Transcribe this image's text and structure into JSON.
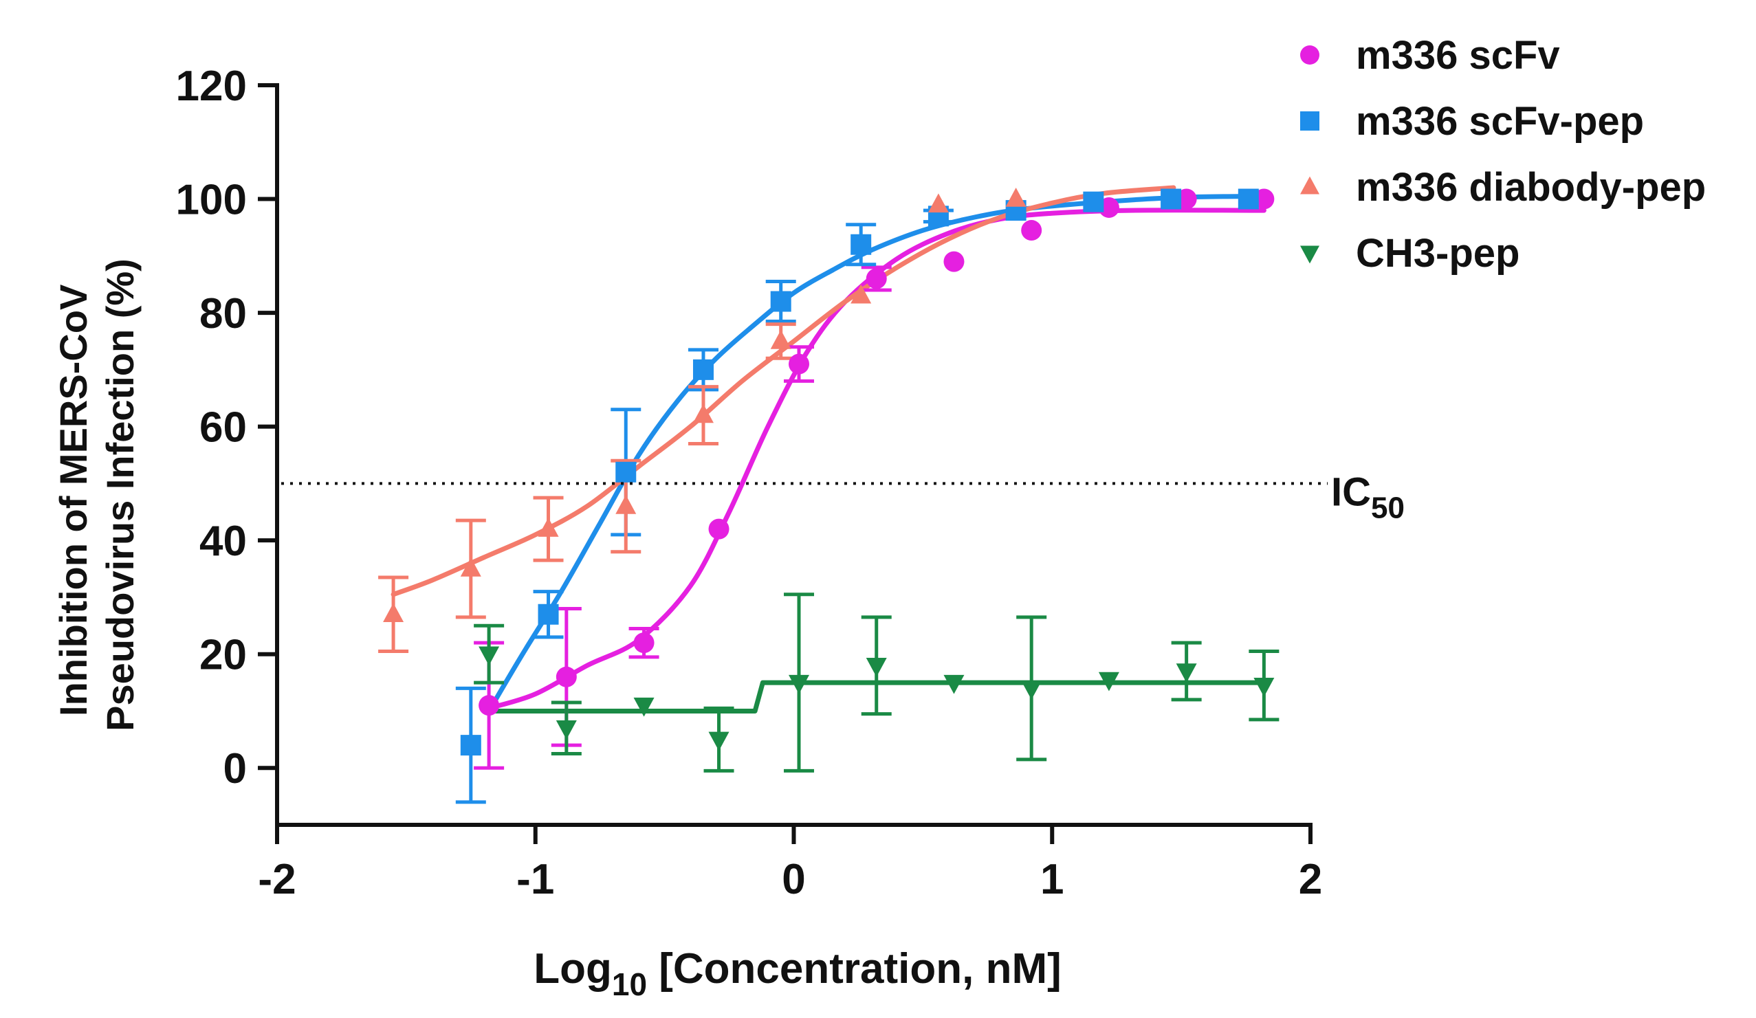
{
  "chart_data": {
    "type": "scatter",
    "xlabel": {
      "main": "Log",
      "sub": "10",
      "rest": " [Concentration, nM]"
    },
    "ylabel": [
      "Inhibition of MERS-CoV",
      "Pseudovirus Infection (%)"
    ],
    "xlim": [
      -2,
      2
    ],
    "ylim": [
      -10,
      120
    ],
    "xticks": [
      -2,
      -1,
      0,
      1,
      2
    ],
    "yticks": [
      0,
      20,
      40,
      60,
      80,
      100,
      120
    ],
    "reference_line": {
      "y": 50,
      "label_main": "IC",
      "label_sub": "50",
      "style": "dotted"
    },
    "legend_position": "top-right",
    "series": [
      {
        "name": "m336 scFv",
        "color": "#e520e0",
        "marker": "circle",
        "fit": "sigmoid",
        "points": [
          {
            "x": -1.18,
            "y": 11,
            "err": 11
          },
          {
            "x": -0.88,
            "y": 16,
            "err": 12
          },
          {
            "x": -0.58,
            "y": 22,
            "err": 2.5
          },
          {
            "x": -0.29,
            "y": 42,
            "err": 0
          },
          {
            "x": 0.02,
            "y": 71,
            "err": 3
          },
          {
            "x": 0.32,
            "y": 86,
            "err": 2
          },
          {
            "x": 0.62,
            "y": 89,
            "err": 0
          },
          {
            "x": 0.92,
            "y": 94.5,
            "err": 0
          },
          {
            "x": 1.22,
            "y": 98.5,
            "err": 0
          },
          {
            "x": 1.52,
            "y": 100,
            "err": 0
          },
          {
            "x": 1.82,
            "y": 100,
            "err": 0
          }
        ],
        "curve": [
          [
            -1.18,
            10.5
          ],
          [
            -1.0,
            13
          ],
          [
            -0.8,
            18
          ],
          [
            -0.6,
            22.5
          ],
          [
            -0.4,
            32
          ],
          [
            -0.25,
            45
          ],
          [
            -0.1,
            60
          ],
          [
            0.05,
            73
          ],
          [
            0.2,
            82
          ],
          [
            0.4,
            89.5
          ],
          [
            0.6,
            94
          ],
          [
            0.8,
            96.5
          ],
          [
            1.0,
            97.5
          ],
          [
            1.3,
            98
          ],
          [
            1.82,
            98
          ]
        ]
      },
      {
        "name": "m336 scFv-pep",
        "color": "#1e8eea",
        "marker": "square",
        "fit": "sigmoid",
        "points": [
          {
            "x": -1.25,
            "y": 4,
            "err": 10
          },
          {
            "x": -0.95,
            "y": 27,
            "err": 4
          },
          {
            "x": -0.65,
            "y": 52,
            "err": 11
          },
          {
            "x": -0.35,
            "y": 70,
            "err": 3.5
          },
          {
            "x": -0.05,
            "y": 82,
            "err": 3.5
          },
          {
            "x": 0.26,
            "y": 92,
            "err": 3.5
          },
          {
            "x": 0.56,
            "y": 97,
            "err": 1
          },
          {
            "x": 0.86,
            "y": 98,
            "err": 0
          },
          {
            "x": 1.16,
            "y": 99.5,
            "err": 0
          },
          {
            "x": 1.46,
            "y": 100,
            "err": 0
          },
          {
            "x": 1.76,
            "y": 100,
            "err": 0
          }
        ],
        "curve": [
          [
            -1.18,
            10
          ],
          [
            -1.05,
            20
          ],
          [
            -0.9,
            31
          ],
          [
            -0.75,
            43
          ],
          [
            -0.6,
            55
          ],
          [
            -0.45,
            64.5
          ],
          [
            -0.3,
            72
          ],
          [
            -0.15,
            78
          ],
          [
            0.0,
            83.5
          ],
          [
            0.15,
            87.5
          ],
          [
            0.3,
            91
          ],
          [
            0.5,
            94.5
          ],
          [
            0.7,
            96.8
          ],
          [
            0.9,
            98.3
          ],
          [
            1.2,
            99.5
          ],
          [
            1.5,
            100.3
          ],
          [
            1.8,
            100.5
          ]
        ]
      },
      {
        "name": "m336 diabody-pep",
        "color": "#f47b6b",
        "marker": "triangle-up",
        "fit": "sigmoid",
        "points": [
          {
            "x": -1.55,
            "y": 27,
            "err": 6.5
          },
          {
            "x": -1.25,
            "y": 35,
            "err": 8.5
          },
          {
            "x": -0.95,
            "y": 42,
            "err": 5.5
          },
          {
            "x": -0.65,
            "y": 46,
            "err": 8
          },
          {
            "x": -0.35,
            "y": 62,
            "err": 5
          },
          {
            "x": -0.05,
            "y": 75,
            "err": 3
          },
          {
            "x": 0.26,
            "y": 83,
            "err": 0
          },
          {
            "x": 0.56,
            "y": 99,
            "err": 0
          },
          {
            "x": 0.86,
            "y": 100,
            "err": 0
          }
        ],
        "curve": [
          [
            -1.55,
            30.5
          ],
          [
            -1.4,
            33
          ],
          [
            -1.2,
            37
          ],
          [
            -1.0,
            41
          ],
          [
            -0.8,
            46
          ],
          [
            -0.6,
            53
          ],
          [
            -0.4,
            60
          ],
          [
            -0.2,
            68
          ],
          [
            0.0,
            75
          ],
          [
            0.2,
            82
          ],
          [
            0.4,
            88
          ],
          [
            0.6,
            93
          ],
          [
            0.8,
            96.8
          ],
          [
            1.0,
            99.3
          ],
          [
            1.2,
            101
          ],
          [
            1.47,
            102
          ]
        ]
      },
      {
        "name": "CH3-pep",
        "color": "#1a8a45",
        "marker": "triangle-down",
        "fit": "step",
        "points": [
          {
            "x": -1.18,
            "y": 20,
            "err": 5
          },
          {
            "x": -0.88,
            "y": 7,
            "err": 4.5
          },
          {
            "x": -0.58,
            "y": 11,
            "err": 0
          },
          {
            "x": -0.29,
            "y": 5,
            "err": 5.5
          },
          {
            "x": 0.02,
            "y": 15,
            "err": 15.5
          },
          {
            "x": 0.32,
            "y": 18,
            "err": 8.5
          },
          {
            "x": 0.62,
            "y": 15,
            "err": 0
          },
          {
            "x": 0.92,
            "y": 14,
            "err": 12.5
          },
          {
            "x": 1.22,
            "y": 15.5,
            "err": 0
          },
          {
            "x": 1.52,
            "y": 17,
            "err": 5
          },
          {
            "x": 1.82,
            "y": 14.5,
            "err": 6
          }
        ],
        "curve": [
          [
            -1.18,
            10
          ],
          [
            -0.15,
            10
          ],
          [
            -0.12,
            15
          ],
          [
            1.82,
            15
          ]
        ]
      }
    ]
  }
}
